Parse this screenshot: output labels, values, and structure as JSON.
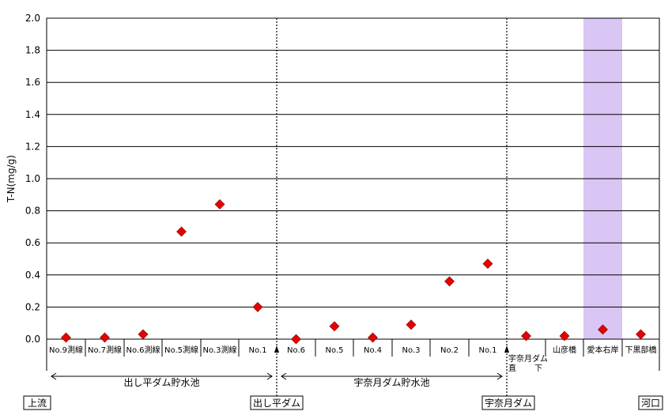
{
  "chart_data": {
    "type": "scatter",
    "ylabel": "T-N(mg/g)",
    "ylim": [
      0,
      2.0
    ],
    "yticks": [
      "0.0",
      "0.2",
      "0.4",
      "0.6",
      "0.8",
      "1.0",
      "1.2",
      "1.4",
      "1.6",
      "1.8",
      "2.0"
    ],
    "categories": [
      "No.9測線",
      "No.7測線",
      "No.6測線",
      "No.5測線",
      "No.3測線",
      "No.1",
      "No.6",
      "No.5",
      "No.4",
      "No.3",
      "No.2",
      "No.1",
      "宇奈月ダム直下",
      "山彦橋",
      "愛本右岸",
      "下黒部橋"
    ],
    "values": [
      0.01,
      0.01,
      0.03,
      0.67,
      0.84,
      0.2,
      0.0,
      0.08,
      0.01,
      0.09,
      0.36,
      0.47,
      0.02,
      0.02,
      0.06,
      0.03
    ],
    "highlight_category": "愛本右岸",
    "highlight_color": "#d9c6f4",
    "marker_color": "#e60000",
    "grid": true,
    "sections": [
      {
        "label": "出し平ダム貯水池"
      },
      {
        "label": "宇奈月ダム貯水池"
      }
    ],
    "landmarks": [
      "上流",
      "出し平ダム",
      "宇奈月ダム",
      "河口"
    ]
  }
}
